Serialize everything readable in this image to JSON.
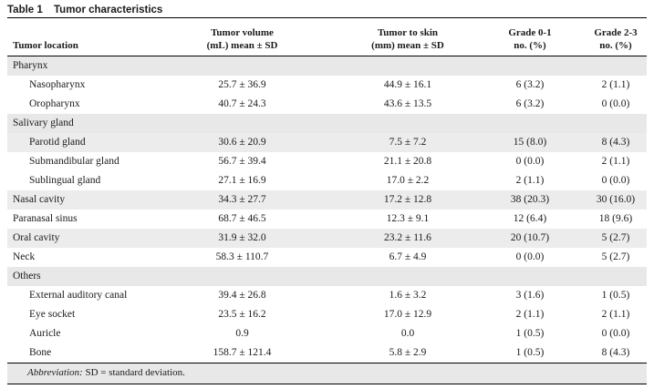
{
  "caption": {
    "number": "Table 1",
    "title": "Tumor characteristics"
  },
  "columns": {
    "location": "Tumor location",
    "volume_l1": "Tumor volume",
    "volume_l2": "(mL) mean ± SD",
    "skin_l1": "Tumor to skin",
    "skin_l2": "(mm) mean ± SD",
    "g01_l1": "Grade 0-1",
    "g01_l2": "no. (%)",
    "g23_l1": "Grade 2-3",
    "g23_l2": "no. (%)"
  },
  "rows": [
    {
      "type": "section",
      "label": "Pharynx"
    },
    {
      "type": "sub",
      "label": "Nasopharynx",
      "volume": "25.7 ± 36.9",
      "skin": "44.9 ± 16.1",
      "g01": "6 (3.2)",
      "g23": "2 (1.1)"
    },
    {
      "type": "sub",
      "label": "Oropharynx",
      "volume": "40.7 ± 24.3",
      "skin": "43.6 ± 13.5",
      "g01": "6 (3.2)",
      "g23": "0 (0.0)"
    },
    {
      "type": "section",
      "label": "Salivary gland"
    },
    {
      "type": "sub",
      "label": "Parotid gland",
      "volume": "30.6 ± 20.9",
      "skin": "7.5 ± 7.2",
      "g01": "15 (8.0)",
      "g23": "8 (4.3)"
    },
    {
      "type": "sub",
      "label": "Submandibular gland",
      "volume": "56.7 ± 39.4",
      "skin": "21.1 ± 20.8",
      "g01": "0 (0.0)",
      "g23": "2 (1.1)"
    },
    {
      "type": "sub",
      "label": "Sublingual gland",
      "volume": "27.1 ± 16.9",
      "skin": "17.0 ± 2.2",
      "g01": "2 (1.1)",
      "g23": "0 (0.0)"
    },
    {
      "type": "main",
      "label": "Nasal cavity",
      "volume": "34.3 ± 27.7",
      "skin": "17.2 ± 12.8",
      "g01": "38 (20.3)",
      "g23": "30 (16.0)"
    },
    {
      "type": "main",
      "label": "Paranasal sinus",
      "volume": "68.7 ± 46.5",
      "skin": "12.3 ± 9.1",
      "g01": "12 (6.4)",
      "g23": "18 (9.6)"
    },
    {
      "type": "main",
      "label": "Oral cavity",
      "volume": "31.9 ± 32.0",
      "skin": "23.2 ± 11.6",
      "g01": "20 (10.7)",
      "g23": "5 (2.7)"
    },
    {
      "type": "main",
      "label": "Neck",
      "volume": "58.3 ± 110.7",
      "skin": "6.7 ± 4.9",
      "g01": "0 (0.0)",
      "g23": "5 (2.7)"
    },
    {
      "type": "section",
      "label": "Others"
    },
    {
      "type": "sub",
      "label": "External auditory canal",
      "volume": "39.4 ± 26.8",
      "skin": "1.6 ± 3.2",
      "g01": "3 (1.6)",
      "g23": "1 (0.5)"
    },
    {
      "type": "sub",
      "label": "Eye socket",
      "volume": "23.5 ± 16.2",
      "skin": "17.0 ± 12.9",
      "g01": "2 (1.1)",
      "g23": "2 (1.1)"
    },
    {
      "type": "sub",
      "label": "Auricle",
      "volume": "0.9",
      "skin": "0.0",
      "g01": "1 (0.5)",
      "g23": "0 (0.0)"
    },
    {
      "type": "sub",
      "label": "Bone",
      "volume": "158.7 ± 121.4",
      "skin": "5.8 ± 2.9",
      "g01": "1 (0.5)",
      "g23": "8 (4.3)"
    }
  ],
  "footnote": {
    "label": "Abbreviation:",
    "text": " SD = standard deviation."
  }
}
